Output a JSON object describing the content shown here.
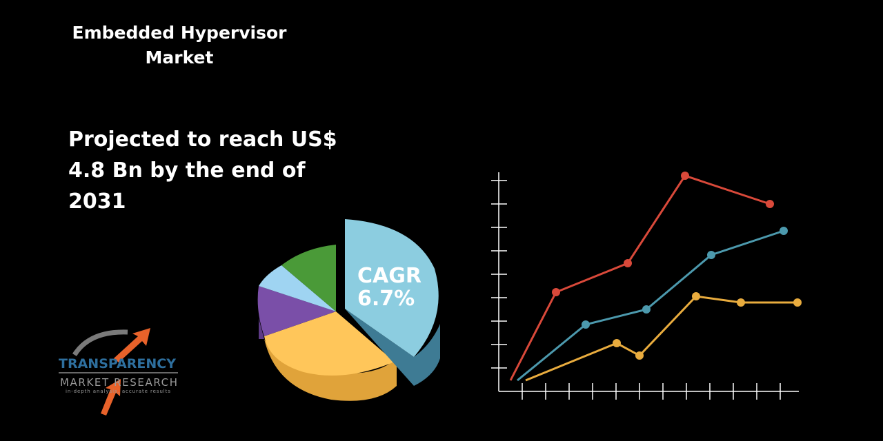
{
  "title": {
    "line1": "Embedded Hypervisor",
    "line2": "Market"
  },
  "headline": {
    "line1": "Projected to reach US$",
    "line2": "4.8 Bn by the end of",
    "line3": "2031"
  },
  "pie": {
    "label_line1": "CAGR",
    "label_line2": "6.7%",
    "colors": {
      "blue": "#8ccde0",
      "yellow": "#ffc65a",
      "purple": "#7a4fa8",
      "lightblue": "#9fd4f2",
      "green": "#4a9a38"
    }
  },
  "chart": {
    "series_colors": [
      "#d9493a",
      "#4c99ad",
      "#e9ac3e"
    ],
    "axis_color": "#ffffff"
  },
  "logo": {
    "line1": "TRANSPARENCY",
    "line2": "MARKET RESEARCH",
    "tagline": "in-depth analysis, accurate results",
    "colors": {
      "primary": "#2e6f9e",
      "arrow": "#e8622a"
    }
  }
}
